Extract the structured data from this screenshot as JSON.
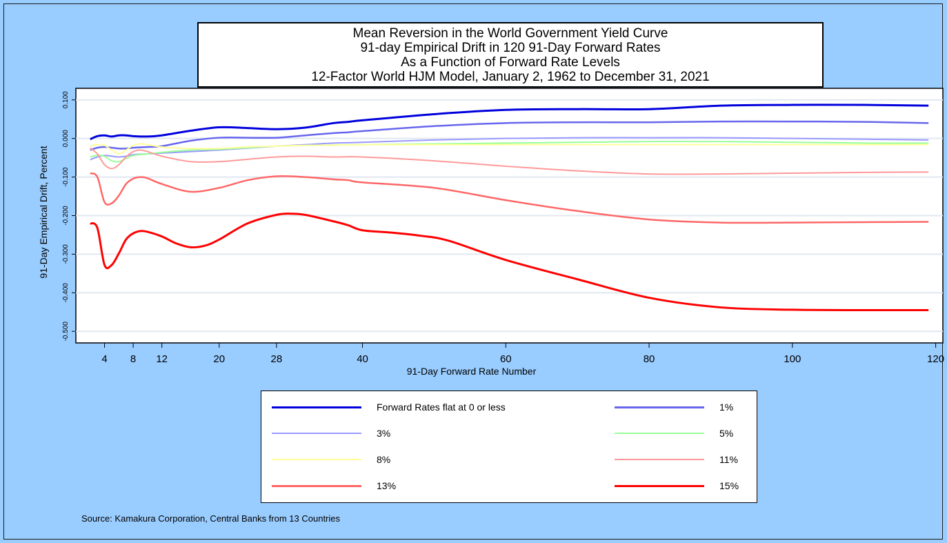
{
  "chart_data": {
    "type": "line",
    "title": [
      "Mean Reversion in the World Government Yield Curve",
      "91-day Empirical Drift in 120 91-Day Forward Rates",
      "As a Function of Forward Rate Levels",
      "12-Factor World HJM Model, January 2, 1962 to December 31, 2021"
    ],
    "xlabel": "91-Day Forward Rate Number",
    "ylabel": "91-Day Empirical Drift, Percent",
    "xlim": [
      0,
      121
    ],
    "ylim": [
      -0.53,
      0.13
    ],
    "xticks": [
      4,
      8,
      12,
      20,
      28,
      40,
      60,
      80,
      100,
      120
    ],
    "xtick_labels": [
      "4",
      "8",
      "12",
      "20",
      "28",
      "40",
      "60",
      "80",
      "100",
      "120"
    ],
    "yticks": [
      0.1,
      0.0,
      -0.1,
      -0.2,
      -0.3,
      -0.4,
      -0.5
    ],
    "ytick_labels": [
      "0.100",
      "0.000",
      "-0.100",
      "-0.200",
      "-0.300",
      "-0.400",
      "-0.500"
    ],
    "grid": true,
    "legend_position": "bottom",
    "series": [
      {
        "name": "Forward Rates flat at 0 or less",
        "color": "#0000dd",
        "width": 3,
        "x": [
          2,
          3,
          4,
          5,
          6,
          7,
          8,
          10,
          12,
          16,
          20,
          24,
          28,
          32,
          36,
          38,
          40,
          50,
          60,
          70,
          80,
          90,
          100,
          110,
          119
        ],
        "y": [
          -0.002,
          0.006,
          0.008,
          0.005,
          0.008,
          0.008,
          0.006,
          0.005,
          0.008,
          0.02,
          0.029,
          0.027,
          0.024,
          0.028,
          0.04,
          0.043,
          0.047,
          0.063,
          0.074,
          0.076,
          0.076,
          0.085,
          0.087,
          0.087,
          0.085
        ]
      },
      {
        "name": "1%",
        "color": "#6666ee",
        "width": 2.5,
        "x": [
          2,
          3,
          4,
          5,
          6,
          7,
          8,
          10,
          12,
          16,
          20,
          24,
          28,
          32,
          36,
          38,
          40,
          50,
          60,
          70,
          80,
          90,
          100,
          110,
          119
        ],
        "y": [
          -0.03,
          -0.024,
          -0.022,
          -0.024,
          -0.026,
          -0.026,
          -0.024,
          -0.022,
          -0.02,
          -0.006,
          0.002,
          0.002,
          0.002,
          0.008,
          0.014,
          0.016,
          0.019,
          0.032,
          0.04,
          0.042,
          0.042,
          0.044,
          0.044,
          0.043,
          0.04
        ]
      },
      {
        "name": "3%",
        "color": "#9999ff",
        "width": 2,
        "x": [
          2,
          3,
          4,
          5,
          6,
          7,
          8,
          10,
          12,
          16,
          20,
          24,
          28,
          32,
          36,
          40,
          50,
          60,
          70,
          80,
          90,
          100,
          110,
          119
        ],
        "y": [
          -0.055,
          -0.048,
          -0.044,
          -0.046,
          -0.048,
          -0.046,
          -0.042,
          -0.04,
          -0.038,
          -0.034,
          -0.03,
          -0.025,
          -0.02,
          -0.016,
          -0.012,
          -0.01,
          -0.004,
          0.0,
          0.002,
          0.002,
          0.002,
          0.0,
          -0.002,
          -0.004
        ]
      },
      {
        "name": "5%",
        "color": "#99ff99",
        "width": 2,
        "x": [
          2,
          3,
          4,
          5,
          6,
          7,
          8,
          10,
          12,
          16,
          20,
          24,
          28,
          32,
          40,
          50,
          60,
          70,
          80,
          90,
          100,
          110,
          119
        ],
        "y": [
          -0.048,
          -0.044,
          -0.046,
          -0.058,
          -0.06,
          -0.052,
          -0.044,
          -0.04,
          -0.036,
          -0.03,
          -0.028,
          -0.024,
          -0.02,
          -0.018,
          -0.016,
          -0.014,
          -0.012,
          -0.01,
          -0.008,
          -0.008,
          -0.01,
          -0.012,
          -0.012
        ]
      },
      {
        "name": "8%",
        "color": "#ffff99",
        "width": 2,
        "x": [
          2,
          3,
          4,
          5,
          6,
          7,
          8,
          9,
          10,
          12,
          16,
          20,
          24,
          28,
          32,
          40,
          50,
          60,
          70,
          80,
          90,
          100,
          110,
          119
        ],
        "y": [
          -0.02,
          -0.016,
          -0.018,
          -0.03,
          -0.04,
          -0.03,
          -0.018,
          -0.014,
          -0.016,
          -0.022,
          -0.026,
          -0.026,
          -0.022,
          -0.02,
          -0.018,
          -0.016,
          -0.016,
          -0.016,
          -0.016,
          -0.016,
          -0.016,
          -0.016,
          -0.016,
          -0.016
        ]
      },
      {
        "name": "11%",
        "color": "#ff9999",
        "width": 2,
        "x": [
          2,
          3,
          4,
          5,
          6,
          7,
          8,
          9,
          10,
          12,
          16,
          20,
          24,
          28,
          32,
          36,
          40,
          50,
          60,
          70,
          80,
          90,
          100,
          110,
          119
        ],
        "y": [
          -0.025,
          -0.04,
          -0.068,
          -0.078,
          -0.068,
          -0.048,
          -0.034,
          -0.03,
          -0.034,
          -0.046,
          -0.06,
          -0.06,
          -0.054,
          -0.048,
          -0.046,
          -0.048,
          -0.048,
          -0.058,
          -0.072,
          -0.084,
          -0.092,
          -0.092,
          -0.09,
          -0.088,
          -0.087
        ]
      },
      {
        "name": "13%",
        "color": "#ff6666",
        "width": 2.5,
        "x": [
          2,
          3,
          4,
          5,
          6,
          7,
          8,
          9,
          10,
          12,
          16,
          20,
          24,
          28,
          32,
          36,
          38,
          40,
          50,
          60,
          70,
          80,
          90,
          100,
          110,
          119
        ],
        "y": [
          -0.09,
          -0.1,
          -0.165,
          -0.168,
          -0.148,
          -0.118,
          -0.104,
          -0.1,
          -0.103,
          -0.118,
          -0.138,
          -0.128,
          -0.108,
          -0.098,
          -0.1,
          -0.106,
          -0.108,
          -0.114,
          -0.128,
          -0.16,
          -0.188,
          -0.21,
          -0.218,
          -0.218,
          -0.217,
          -0.216
        ]
      },
      {
        "name": "15%",
        "color": "#ff0000",
        "width": 3,
        "x": [
          2,
          3,
          4,
          5,
          6,
          7,
          8,
          9,
          10,
          12,
          14,
          16,
          18,
          20,
          24,
          28,
          30,
          32,
          36,
          38,
          40,
          44,
          48,
          52,
          60,
          70,
          80,
          90,
          100,
          110,
          119
        ],
        "y": [
          -0.22,
          -0.232,
          -0.328,
          -0.328,
          -0.298,
          -0.262,
          -0.246,
          -0.24,
          -0.242,
          -0.254,
          -0.272,
          -0.282,
          -0.278,
          -0.262,
          -0.22,
          -0.198,
          -0.195,
          -0.198,
          -0.215,
          -0.225,
          -0.238,
          -0.244,
          -0.252,
          -0.265,
          -0.315,
          -0.365,
          -0.413,
          -0.438,
          -0.444,
          -0.445,
          -0.445
        ]
      }
    ]
  },
  "source": "Source: Kamakura Corporation, Central Banks from 13 Countries"
}
